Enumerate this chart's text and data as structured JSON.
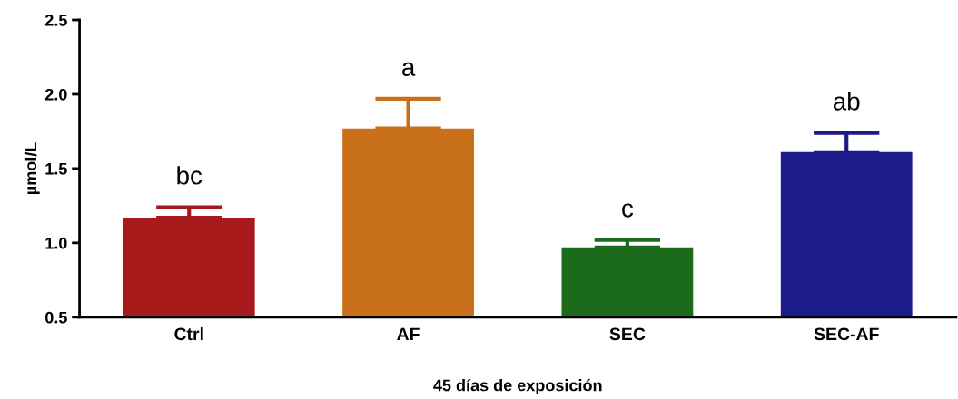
{
  "chart_data": {
    "type": "bar",
    "xlabel": "45 días de exposición",
    "ylabel": "µmol/L",
    "categories": [
      "Ctrl",
      "AF",
      "SEC",
      "SEC-AF"
    ],
    "values": [
      1.17,
      1.77,
      0.97,
      1.61
    ],
    "errors": [
      [
        1.17,
        1.24
      ],
      [
        1.77,
        1.97
      ],
      [
        0.97,
        1.02
      ],
      [
        1.61,
        1.74
      ]
    ],
    "colors": [
      "#a8191c",
      "#c8701a",
      "#1c6b1c",
      "#1b1b8a"
    ],
    "ylim": [
      0.5,
      2.5
    ],
    "yticks": [
      {
        "value": 0.5,
        "label": "0.5"
      },
      {
        "value": 1.0,
        "label": "1.0"
      },
      {
        "value": 1.5,
        "label": "1.5"
      },
      {
        "value": 2.0,
        "label": "2.0"
      },
      {
        "value": 2.5,
        "label": "2.5"
      }
    ],
    "annotations": [
      "bc",
      "a",
      "c",
      "ab"
    ],
    "grid": false,
    "legend": false
  }
}
